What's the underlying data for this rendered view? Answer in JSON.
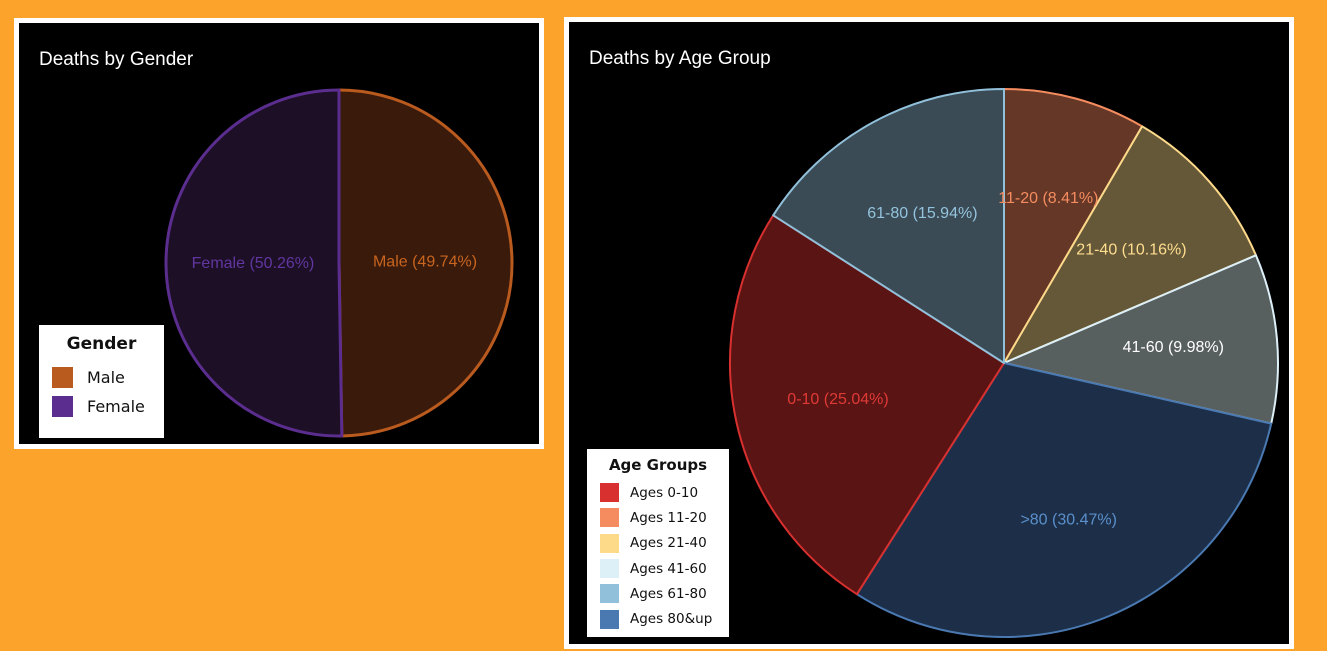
{
  "chart_data": [
    {
      "type": "pie",
      "title": "Deaths by Gender",
      "legend_title": "Gender",
      "legend_position": "bottom-left",
      "categories": [
        "Male",
        "Female"
      ],
      "values": [
        49.74,
        50.26
      ],
      "slice_labels": [
        "Male (49.74%)",
        "Female (50.26%)"
      ],
      "colors": [
        "#B95A1E",
        "#5B2D8E"
      ],
      "fill_colors": [
        "#3A1A0B",
        "#1C0F26"
      ],
      "label_colors": [
        "#C8651F",
        "#6236A0"
      ]
    },
    {
      "type": "pie",
      "title": "Deaths by Age Group",
      "legend_title": "Age Groups",
      "legend_position": "bottom-left",
      "categories": [
        "Ages 0-10",
        "Ages 11-20",
        "Ages 21-40",
        "Ages 41-60",
        "Ages 61-80",
        "Ages 80&up"
      ],
      "values": [
        25.04,
        8.41,
        10.16,
        9.98,
        15.94,
        30.47
      ],
      "slice_labels": [
        "0-10 (25.04%)",
        "11-20 (8.41%)",
        "21-40 (10.16%)",
        "41-60 (9.98%)",
        "61-80 (15.94%)",
        ">80 (30.47%)"
      ],
      "colors": [
        "#D7302F",
        "#F58C5F",
        "#FDD98A",
        "#DDEFF7",
        "#91C0DA",
        "#4A79B2"
      ],
      "fill_colors": [
        "#5A1414",
        "#643727",
        "#645838",
        "#585F5F",
        "#3A4B55",
        "#1D2F48"
      ],
      "label_colors": [
        "#E03A36",
        "#F58C5F",
        "#FFDD8F",
        "#FFFFFF",
        "#94C3DD",
        "#5A8FCB"
      ]
    }
  ]
}
